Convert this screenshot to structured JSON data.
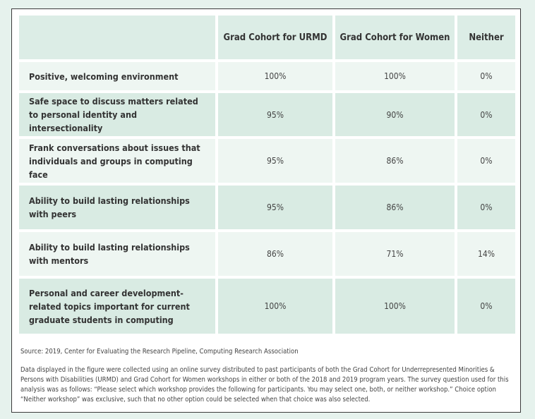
{
  "table": {
    "headers": [
      "",
      "Grad Cohort for URMD",
      "Grad Cohort for Women",
      "Neither"
    ],
    "rows": [
      {
        "label": "Positive, welcoming environment",
        "urmd": "100%",
        "women": "100%",
        "neither": "0%"
      },
      {
        "label": "Safe space to discuss matters related to personal identity and intersectionality",
        "urmd": "95%",
        "women": "90%",
        "neither": "0%"
      },
      {
        "label": "Frank conversations about issues that individuals and groups in computing face",
        "urmd": "95%",
        "women": "86%",
        "neither": "0%"
      },
      {
        "label": "Ability to build lasting relationships with peers",
        "urmd": "95%",
        "women": "86%",
        "neither": "0%"
      },
      {
        "label": "Ability to build lasting relationships with mentors",
        "urmd": "86%",
        "women": "71%",
        "neither": "14%"
      },
      {
        "label": "Personal and career development-related topics important for current graduate students in computing",
        "urmd": "100%",
        "women": "100%",
        "neither": "0%"
      }
    ]
  },
  "source": "Source: 2019, Center for Evaluating the Research Pipeline, Computing Research Association",
  "note": "Data displayed in the figure were collected using an online survey distributed to past participants of both the Grad Cohort for Underrepresented Minorities & Persons with Disabilities (URMD) and Grad Cohort for Women workshops in either or both of the 2018 and 2019 program years. The survey question used for this analysis was as follows: “Please select which workshop provides the following for participants. You may select one, both, or neither workshop.” Choice option “Neither workshop” was exclusive, such that no other option could be selected when that choice was also selected.",
  "colors": {
    "row_dark": "#d9ebe3",
    "row_light": "#eef6f2",
    "background": "#e6f2ed"
  }
}
